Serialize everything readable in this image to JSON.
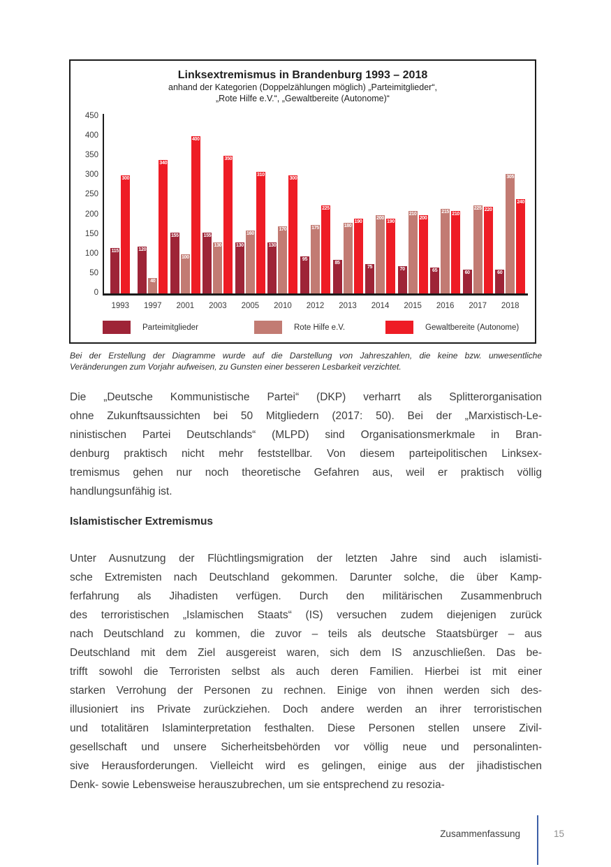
{
  "chart_data": {
    "type": "bar",
    "title": "Linksextremismus in Brandenburg 1993 – 2018",
    "subtitle_line1": "anhand der Kategorien (Doppelzählungen möglich) „Parteimitglieder“,",
    "subtitle_line2": "„Rote Hilfe e.V.“, „Gewaltbereite (Autonome)“",
    "categories": [
      "1993",
      "1997",
      "2001",
      "2003",
      "2005",
      "2010",
      "2012",
      "2013",
      "2014",
      "2015",
      "2016",
      "2017",
      "2018"
    ],
    "series": [
      {
        "name": "Parteimitglieder",
        "color": "#9e2437",
        "values": [
          115,
          120,
          155,
          155,
          130,
          130,
          95,
          85,
          75,
          70,
          65,
          60,
          60
        ]
      },
      {
        "name": "Rote Hilfe e.V.",
        "color": "#c27b73",
        "values": [
          null,
          40,
          100,
          130,
          160,
          170,
          175,
          180,
          200,
          210,
          215,
          225,
          305
        ]
      },
      {
        "name": "Gewaltbereite (Autonome)",
        "color": "#ee1c25",
        "values": [
          300,
          340,
          400,
          350,
          310,
          300,
          225,
          190,
          190,
          200,
          210,
          220,
          240
        ]
      }
    ],
    "ylim": [
      0,
      450
    ],
    "yticks": [
      0,
      50,
      100,
      150,
      200,
      250,
      300,
      350,
      400,
      450
    ],
    "grid": false,
    "legend_position": "bottom",
    "bar_value_labels": true,
    "bar_label_color": "#ffffff"
  },
  "caption_lines": [
    "Bei der Erstellung der Diagramme wurde auf die Darstellung von Jahreszahlen, die keine bzw. unwesentliche",
    "Veränderungen zum Vorjahr aufweisen, zu Gunsten einer besseren Lesbarkeit verzichtet."
  ],
  "paragraph1_lines": [
    "Die „Deutsche Kommunistische Partei“ (DKP) verharrt als Splitterorganisation",
    "ohne Zukunftsaussichten bei 50 Mitgliedern (2017: 50). Bei der „Marxistisch-Le-",
    "ninistischen Partei Deutschlands“ (MLPD) sind Organisationsmerkmale in Bran-",
    "denburg praktisch nicht mehr feststellbar. Von diesem parteipolitischen Linksex-",
    "tremismus gehen nur noch theoretische Gefahren aus, weil er praktisch völlig",
    "handlungsunfähig ist."
  ],
  "section_heading": "Islamistischer Extremismus",
  "paragraph2_lines": [
    "Unter Ausnutzung der Flüchtlingsmigration der letzten Jahre sind auch islamisti-",
    "sche Extremisten nach Deutschland gekommen. Darunter solche, die über Kamp-",
    "ferfahrung als Jihadisten verfügen. Durch den militärischen Zusammenbruch",
    "des terroristischen „Islamischen Staats“ (IS) versuchen zudem diejenigen zurück",
    "nach Deutschland zu kommen, die zuvor – teils als deutsche Staatsbürger – aus",
    "Deutschland mit dem Ziel ausgereist waren, sich dem IS anzuschließen. Das be-",
    "trifft sowohl die Terroristen selbst als auch deren Familien. Hierbei ist mit einer",
    "starken Verrohung der Personen zu rechnen. Einige von ihnen werden sich des-",
    "illusioniert ins Private zurückziehen. Doch andere werden an ihrer terroristischen",
    "und totalitären Islaminterpretation festhalten. Diese Personen stellen unsere Zivil-",
    "gesellschaft und unsere Sicherheitsbehörden vor völlig neue und personalinten-",
    "sive Herausforderungen. Vielleicht wird es gelingen, einige aus der jihadistischen",
    "Denk- sowie Lebensweise herauszubrechen, um sie entsprechend zu resozia-"
  ],
  "footer": {
    "section_label": "Zusammenfassung",
    "page_number": "15",
    "divider_color": "#3c5fa7"
  }
}
